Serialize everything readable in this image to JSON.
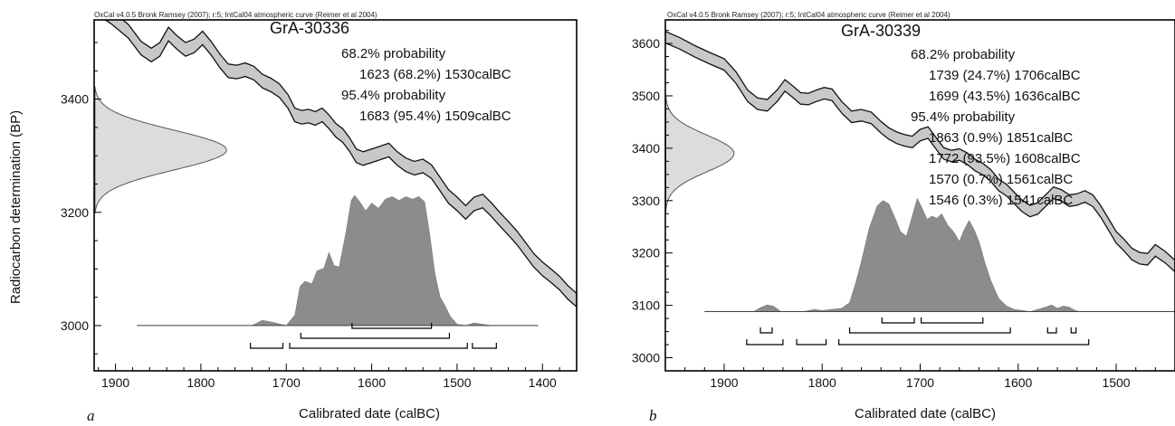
{
  "ylabel": "Radiocarbon determination (BP)",
  "chart_data": [
    {
      "type": "area",
      "panel_letter": "a",
      "header": "OxCal v4.0.5 Bronk Ramsey (2007); r:5; IntCal04 atmospheric curve (Reimer et al 2004)",
      "title": "GrA-30336",
      "xlabel": "Calibrated date (calBC)",
      "ylabel": "Radiocarbon determination (BP)",
      "xlim": [
        1925,
        1360
      ],
      "ylim": [
        2920,
        3540
      ],
      "x_ticks": [
        1900,
        1800,
        1700,
        1600,
        1500,
        1400
      ],
      "y_ticks": [
        3000,
        3200,
        3400
      ],
      "ranges_text": [
        "68.2% probability",
        "1623 (68.2%) 1530calBC",
        "95.4% probability",
        "1683 (95.4%) 1509calBC"
      ],
      "ranges_68": [
        [
          1623,
          1530
        ]
      ],
      "ranges_95": [
        [
          1683,
          1509
        ]
      ],
      "radiocarbon": {
        "mean": 3310,
        "sd": 35,
        "base_x": 1925,
        "peak_x": 1770
      },
      "calibration_curve": {
        "x": [
          1925,
          1905,
          1885,
          1870,
          1858,
          1848,
          1838,
          1828,
          1818,
          1808,
          1798,
          1788,
          1778,
          1768,
          1758,
          1748,
          1738,
          1728,
          1718,
          1708,
          1698,
          1690,
          1682,
          1674,
          1666,
          1658,
          1650,
          1642,
          1634,
          1626,
          1618,
          1610,
          1600,
          1590,
          1580,
          1570,
          1560,
          1550,
          1540,
          1530,
          1520,
          1510,
          1500,
          1490,
          1480,
          1470,
          1460,
          1450,
          1440,
          1430,
          1420,
          1410,
          1400,
          1390,
          1380,
          1370,
          1360
        ],
        "y": [
          3565,
          3545,
          3520,
          3490,
          3478,
          3488,
          3515,
          3500,
          3488,
          3494,
          3508,
          3490,
          3468,
          3450,
          3448,
          3452,
          3446,
          3432,
          3425,
          3415,
          3396,
          3372,
          3368,
          3370,
          3366,
          3372,
          3360,
          3345,
          3336,
          3320,
          3300,
          3295,
          3300,
          3305,
          3310,
          3295,
          3284,
          3278,
          3282,
          3272,
          3250,
          3228,
          3215,
          3200,
          3215,
          3220,
          3205,
          3188,
          3172,
          3155,
          3135,
          3115,
          3100,
          3088,
          3075,
          3058,
          3045
        ],
        "band_width": 12
      },
      "posterior": {
        "x": [
          1875,
          1740,
          1728,
          1720,
          1700,
          1690,
          1684,
          1678,
          1670,
          1664,
          1656,
          1650,
          1644,
          1638,
          1630,
          1624,
          1620,
          1614,
          1607,
          1600,
          1592,
          1584,
          1576,
          1568,
          1560,
          1552,
          1545,
          1538,
          1532,
          1526,
          1520,
          1514,
          1508,
          1500,
          1490,
          1480,
          1470,
          1460,
          1405
        ],
        "y": [
          0,
          0,
          0.04,
          0.03,
          0,
          0.08,
          0.3,
          0.34,
          0.32,
          0.42,
          0.44,
          0.56,
          0.46,
          0.45,
          0.72,
          0.96,
          1.0,
          0.95,
          0.88,
          0.94,
          0.9,
          0.97,
          0.99,
          0.96,
          0.99,
          0.97,
          0.99,
          0.95,
          0.7,
          0.4,
          0.22,
          0.15,
          0.07,
          0.01,
          0,
          0.02,
          0.01,
          0,
          0
        ]
      }
    },
    {
      "type": "area",
      "panel_letter": "b",
      "header": "OxCal v4.0.5 Bronk Ramsey (2007); r:5; IntCal04 atmospheric curve (Reimer et al 2004)",
      "title": "GrA-30339",
      "xlabel": "Calibrated date (calBC)",
      "ylabel": "",
      "xlim": [
        1960,
        1440
      ],
      "ylim": [
        2975,
        3645
      ],
      "x_ticks": [
        1900,
        1800,
        1700,
        1600,
        1500
      ],
      "y_ticks": [
        3000,
        3100,
        3200,
        3300,
        3400,
        3500,
        3600
      ],
      "ranges_text": [
        "68.2% probability",
        "1739 (24.7%) 1706calBC",
        "1699 (43.5%) 1636calBC",
        "95.4% probability",
        "1863 (0.9%) 1851calBC",
        "1772 (93.5%) 1608calBC",
        "1570 (0.7%) 1561calBC",
        "1546 (0.3%) 1541calBC"
      ],
      "ranges_68": [
        [
          1739,
          1706
        ],
        [
          1699,
          1636
        ]
      ],
      "ranges_95": [
        [
          1863,
          1851
        ],
        [
          1772,
          1608
        ],
        [
          1570,
          1561
        ],
        [
          1546,
          1541
        ]
      ],
      "radiocarbon": {
        "mean": 3390,
        "sd": 35,
        "base_x": 1960,
        "peak_x": 1890
      },
      "calibration_curve": {
        "x": [
          1960,
          1945,
          1930,
          1915,
          1900,
          1888,
          1876,
          1866,
          1856,
          1846,
          1838,
          1830,
          1822,
          1814,
          1806,
          1798,
          1790,
          1780,
          1770,
          1760,
          1750,
          1740,
          1732,
          1724,
          1716,
          1708,
          1700,
          1692,
          1684,
          1676,
          1668,
          1660,
          1652,
          1644,
          1636,
          1628,
          1620,
          1612,
          1604,
          1596,
          1588,
          1580,
          1572,
          1564,
          1556,
          1548,
          1540,
          1532,
          1524,
          1516,
          1508,
          1500,
          1492,
          1484,
          1476,
          1468,
          1460,
          1450,
          1440
        ],
        "y": [
          3612,
          3600,
          3585,
          3572,
          3560,
          3535,
          3500,
          3485,
          3482,
          3500,
          3520,
          3508,
          3495,
          3494,
          3500,
          3505,
          3502,
          3478,
          3460,
          3463,
          3458,
          3440,
          3428,
          3420,
          3415,
          3412,
          3425,
          3430,
          3410,
          3390,
          3385,
          3388,
          3380,
          3368,
          3360,
          3348,
          3330,
          3320,
          3305,
          3290,
          3280,
          3285,
          3300,
          3315,
          3310,
          3300,
          3302,
          3308,
          3300,
          3280,
          3255,
          3230,
          3215,
          3198,
          3190,
          3188,
          3205,
          3192,
          3175
        ],
        "band_width": 11
      },
      "posterior": {
        "x": [
          1920,
          1870,
          1862,
          1856,
          1850,
          1842,
          1820,
          1808,
          1800,
          1790,
          1780,
          1772,
          1766,
          1760,
          1752,
          1744,
          1738,
          1732,
          1726,
          1720,
          1714,
          1708,
          1703,
          1698,
          1693,
          1688,
          1683,
          1678,
          1672,
          1666,
          1660,
          1655,
          1650,
          1645,
          1640,
          1634,
          1628,
          1620,
          1612,
          1604,
          1596,
          1588,
          1580,
          1572,
          1566,
          1560,
          1554,
          1548,
          1542,
          1536,
          1530,
          1520,
          1430
        ],
        "y": [
          0,
          0,
          0.04,
          0.06,
          0.05,
          0,
          0,
          0.02,
          0.01,
          0.02,
          0.03,
          0.08,
          0.25,
          0.45,
          0.75,
          0.95,
          1.0,
          0.97,
          0.85,
          0.72,
          0.68,
          0.86,
          1.02,
          0.93,
          0.83,
          0.86,
          0.84,
          0.88,
          0.78,
          0.72,
          0.63,
          0.74,
          0.82,
          0.74,
          0.63,
          0.44,
          0.28,
          0.12,
          0.05,
          0.02,
          0.01,
          0,
          0.02,
          0.04,
          0.06,
          0.03,
          0.05,
          0.04,
          0.01,
          0,
          0,
          0,
          0
        ]
      }
    }
  ]
}
